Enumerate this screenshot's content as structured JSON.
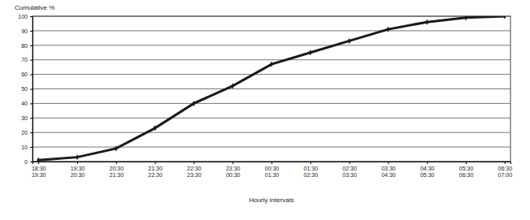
{
  "chart_data": {
    "type": "line",
    "y_label": "Cumulative %",
    "x_label": "Hourly intervals",
    "categories": [
      "18:30\n19:30",
      "19:30\n20:30",
      "20:30\n21:30",
      "21:30\n22:30",
      "22:30\n23:30",
      "23:30\n00:30",
      "00:30\n01:30",
      "01:30\n02:30",
      "02:30\n03:30",
      "03:30\n04:30",
      "04:30\n05:30",
      "05:30\n06:30",
      "06:30\n07:00"
    ],
    "values": [
      1,
      3,
      9,
      23,
      40,
      52,
      67,
      75,
      83,
      91,
      96,
      99,
      100
    ],
    "color": "#1a1a1a",
    "marker": "diamond",
    "ylim": [
      0,
      100
    ],
    "yticks": [
      0,
      10,
      20,
      30,
      40,
      50,
      60,
      70,
      80,
      90,
      100
    ],
    "grid": true
  }
}
